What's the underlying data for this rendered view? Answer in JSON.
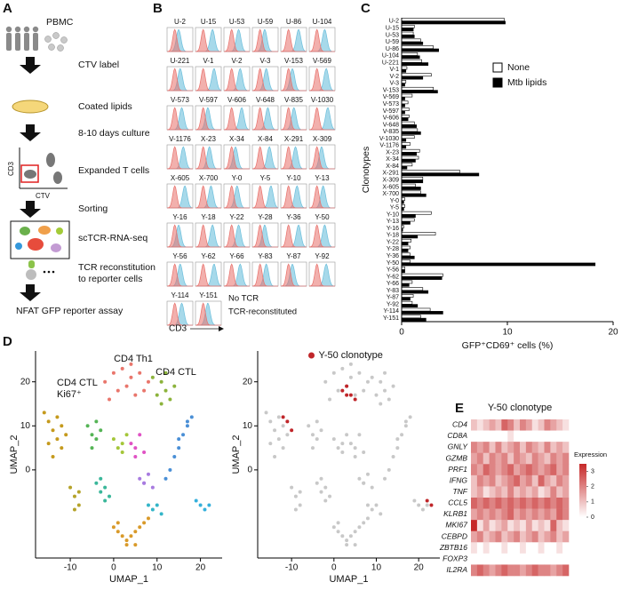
{
  "panel_labels": [
    "A",
    "B",
    "C",
    "D",
    "E"
  ],
  "diagram": {
    "source": "PBMC",
    "steps": [
      "CTV label",
      "Coated lipids",
      "8-10 days culture",
      "Expanded T cells",
      "Sorting",
      "scTCR-RNA-seq",
      [
        "TCR reconstitution",
        "to reporter cells"
      ],
      "NFAT GFP reporter assay"
    ],
    "flow_xlabel": "CTV",
    "flow_ylabel": "CD3"
  },
  "histograms": {
    "legend": [
      "No TCR",
      "TCR-reconstituted"
    ],
    "colors": [
      "#e8706a",
      "#6cbfdc"
    ],
    "xlabel": "CD3"
  },
  "chart_data": [
    {
      "type": "bar",
      "orientation": "horizontal",
      "xlabel": "GFP⁺CD69⁺ cells (%)",
      "ylabel": "Clonotypes",
      "categories": [
        "U-2",
        "U-15",
        "U-53",
        "U-59",
        "U-86",
        "U-104",
        "U-221",
        "V-1",
        "V-2",
        "V-3",
        "V-153",
        "V-569",
        "V-573",
        "V-597",
        "V-606",
        "V-648",
        "V-835",
        "V-1030",
        "V-1176",
        "X-23",
        "X-34",
        "X-84",
        "X-291",
        "X-309",
        "X-605",
        "X-700",
        "Y-0",
        "Y-5",
        "Y-10",
        "Y-13",
        "Y-16",
        "Y-18",
        "Y-22",
        "Y-28",
        "Y-36",
        "Y-50",
        "Y-56",
        "Y-62",
        "Y-66",
        "Y-83",
        "Y-87",
        "Y-92",
        "Y-114",
        "Y-151"
      ],
      "series": [
        {
          "name": "None",
          "color": "#ffffff",
          "values": [
            9.7,
            1.2,
            1.1,
            1.8,
            3,
            1.5,
            1.9,
            0.5,
            2.8,
            0.4,
            3,
            1,
            0.6,
            0.7,
            0.7,
            1.2,
            1.5,
            1.2,
            0.8,
            1.7,
            1.6,
            1,
            5.5,
            2,
            1.3,
            1.8,
            0.3,
            0.3,
            2.8,
            1.2,
            0.2,
            3.2,
            0.9,
            0.8,
            0.8,
            0.8,
            0.3,
            3.9,
            1,
            2,
            1.1,
            1,
            2.7,
            1.8
          ]
        },
        {
          "name": "Mtb lipids",
          "color": "#000000",
          "values": [
            9.8,
            1.1,
            1.2,
            2,
            3.5,
            1.7,
            2.5,
            0.4,
            2,
            0.3,
            3.4,
            0.3,
            0.3,
            0.3,
            0.6,
            1.4,
            1.8,
            0.4,
            0.4,
            1.4,
            1.3,
            0.5,
            7.3,
            2,
            1.8,
            2.3,
            0.2,
            0.2,
            1.3,
            0.8,
            0.1,
            1.5,
            0.6,
            0.6,
            1.2,
            18.3,
            0.3,
            3.8,
            0.7,
            2.5,
            0.8,
            1.5,
            3.9,
            2.3
          ]
        }
      ],
      "xlim": [
        0,
        20
      ],
      "xticks": [
        0,
        10,
        20
      ],
      "legend": "upper right"
    },
    {
      "type": "scatter",
      "xlabel": "UMAP_1",
      "ylabel": "UMAP_2",
      "xlim": [
        -18,
        25
      ],
      "ylim": [
        -20,
        27
      ],
      "xticks": [
        -10,
        0,
        10,
        20
      ],
      "yticks": [
        0,
        10,
        20
      ],
      "series": [
        {
          "label": "CD4 Th1",
          "color": "#e9766c",
          "x": [
            -2,
            0,
            2,
            4,
            6,
            8,
            1,
            3,
            5,
            7,
            -1,
            4
          ],
          "y": [
            20,
            22,
            23,
            24,
            22,
            20,
            18,
            19,
            17,
            18,
            16,
            21
          ]
        },
        {
          "label": "CD4 CTL",
          "color": "#8cb33c",
          "x": [
            9,
            11,
            12,
            13,
            10,
            12,
            14,
            11
          ],
          "y": [
            21,
            20,
            18,
            16,
            17,
            22,
            19,
            15
          ]
        },
        {
          "label": [
            "CD4 CTL",
            "Ki67⁺"
          ],
          "color": "#c59a1d",
          "x": [
            -16,
            -15,
            -14,
            -13,
            -12,
            -15,
            -13,
            -11,
            -14,
            -12
          ],
          "y": [
            13,
            11,
            9,
            7,
            5,
            6,
            12,
            8,
            3,
            10
          ]
        },
        {
          "color": "#55b456",
          "x": [
            -6,
            -5,
            -4,
            -3,
            -5,
            -4
          ],
          "y": [
            10,
            8,
            7,
            9,
            5,
            11
          ]
        },
        {
          "color": "#a4c639",
          "x": [
            0,
            1,
            2,
            3,
            2
          ],
          "y": [
            7,
            5,
            6,
            8,
            4
          ]
        },
        {
          "color": "#e052c4",
          "x": [
            4,
            5,
            6,
            5,
            7
          ],
          "y": [
            6,
            5,
            8,
            3,
            4
          ]
        },
        {
          "color": "#a87be0",
          "x": [
            6,
            7,
            8,
            9,
            7
          ],
          "y": [
            -2,
            -3,
            -1,
            -4,
            -3
          ]
        },
        {
          "color": "#4a8fd6",
          "x": [
            12,
            13,
            14,
            15,
            16,
            17,
            18,
            15,
            17
          ],
          "y": [
            -2,
            0,
            3,
            5,
            8,
            10,
            12,
            7,
            11
          ]
        },
        {
          "color": "#3ab79a",
          "x": [
            -4,
            -3,
            -2,
            -1,
            -3,
            -2
          ],
          "y": [
            -3,
            -2,
            -4,
            -6,
            -5,
            -7
          ]
        },
        {
          "color": "#33b5c8",
          "x": [
            8,
            9,
            10,
            11
          ],
          "y": [
            -8,
            -9,
            -8,
            -10
          ]
        },
        {
          "color": "#36b0dc",
          "x": [
            19,
            20,
            21,
            22
          ],
          "y": [
            -7,
            -8,
            -9,
            -8
          ]
        },
        {
          "color": "#d99a2a",
          "x": [
            0,
            1,
            2,
            3,
            4,
            5,
            6,
            7,
            8,
            3,
            5,
            1
          ],
          "y": [
            -13,
            -14,
            -15,
            -16,
            -15,
            -14,
            -13,
            -12,
            -11,
            -17,
            -17,
            -12
          ]
        },
        {
          "color": "#b5a32a",
          "x": [
            -10,
            -9,
            -8,
            -9,
            -8
          ],
          "y": [
            -4,
            -6,
            -8,
            -9,
            -5
          ]
        }
      ]
    },
    {
      "type": "scatter",
      "xlabel": "UMAP_1",
      "ylabel": "UMAP_2",
      "xlim": [
        -18,
        25
      ],
      "ylim": [
        -20,
        27
      ],
      "xticks": [
        -10,
        0,
        10,
        20
      ],
      "yticks": [
        0,
        10,
        20
      ],
      "background_color": "#c8c8c8",
      "legend": "upper center",
      "series": [
        {
          "name": "Y-50 clonotype",
          "color": "#c0262a",
          "x": [
            -12,
            -11,
            -10,
            2,
            3,
            4,
            5,
            3,
            23,
            22
          ],
          "y": [
            12,
            11,
            9,
            18,
            17,
            17,
            16,
            19,
            -8,
            -7
          ]
        }
      ]
    },
    {
      "type": "heatmap",
      "title": "Y-50 clonotype",
      "title_color": "#c0262a",
      "colorbar_label": "Expression",
      "rows": [
        "CD4",
        "CD8A",
        "GNLY",
        "GZMB",
        "PRF1",
        "IFNG",
        "TNF",
        "CCL5",
        "KLRB1",
        "MKI67",
        "CEBPD",
        "ZBTB16",
        "FOXP3",
        "IL2RA"
      ],
      "values": [
        [
          1,
          0.5,
          1,
          1.5,
          1,
          2.5,
          2,
          1,
          2,
          1.5,
          0.5,
          1,
          2,
          1.5,
          1,
          0.5
        ],
        [
          0,
          0,
          0,
          0,
          0,
          0,
          0.5,
          0,
          0,
          0,
          0,
          0,
          0,
          0,
          0,
          0
        ],
        [
          2,
          1.5,
          2,
          1,
          2,
          1,
          1.5,
          2,
          1,
          2,
          1.5,
          1,
          2,
          1,
          1.5,
          1
        ],
        [
          1.5,
          2,
          1,
          2,
          1.5,
          2,
          1,
          2,
          1.5,
          1,
          2,
          1.5,
          1,
          2,
          1.5,
          2
        ],
        [
          2,
          1.5,
          2.5,
          2,
          1.5,
          2,
          2.5,
          1.5,
          2,
          2.5,
          2,
          1.5,
          2,
          2.5,
          1.5,
          2
        ],
        [
          1,
          2,
          1.5,
          2,
          1,
          1.5,
          2,
          2.5,
          1.5,
          2,
          1,
          2.5,
          1.5,
          1,
          2,
          1.5
        ],
        [
          1,
          1.5,
          0.5,
          1,
          1.5,
          1,
          2,
          1,
          1.5,
          1,
          1.5,
          0.5,
          1,
          2,
          1,
          1.5
        ],
        [
          2.5,
          2,
          2.5,
          2,
          2.5,
          2,
          2.5,
          2,
          2.5,
          2,
          2.5,
          2,
          2.5,
          2,
          2.5,
          2
        ],
        [
          1.5,
          2,
          1.5,
          2,
          1.5,
          2,
          2.5,
          1.5,
          2,
          1.5,
          2,
          1.5,
          2,
          1.5,
          2.5,
          2
        ],
        [
          3.5,
          0.5,
          1.5,
          0.5,
          1,
          1.5,
          0.5,
          1,
          0.5,
          1.5,
          0.5,
          1,
          0.5,
          2.5,
          1,
          0.5
        ],
        [
          1.5,
          2,
          1,
          1.5,
          2,
          1,
          1.5,
          2,
          1,
          1.5,
          2,
          1,
          1.5,
          2,
          1,
          1.5
        ],
        [
          0.5,
          0,
          0.5,
          0,
          0,
          0.5,
          0,
          0,
          0.5,
          0,
          0,
          0.5,
          0,
          0,
          0.5,
          0
        ],
        [
          0,
          0,
          0,
          0,
          0,
          0,
          0,
          0,
          0,
          0,
          0,
          0,
          0,
          0,
          0,
          0
        ],
        [
          2,
          2.5,
          2,
          1.5,
          2,
          2.5,
          2,
          2,
          1.5,
          2,
          2.5,
          2,
          2,
          1.5,
          2,
          2.5
        ]
      ],
      "zlim": [
        0,
        3.5
      ],
      "zticks": [
        0,
        1,
        2,
        3
      ],
      "colors": [
        "#ffffff",
        "#c62828"
      ]
    }
  ]
}
